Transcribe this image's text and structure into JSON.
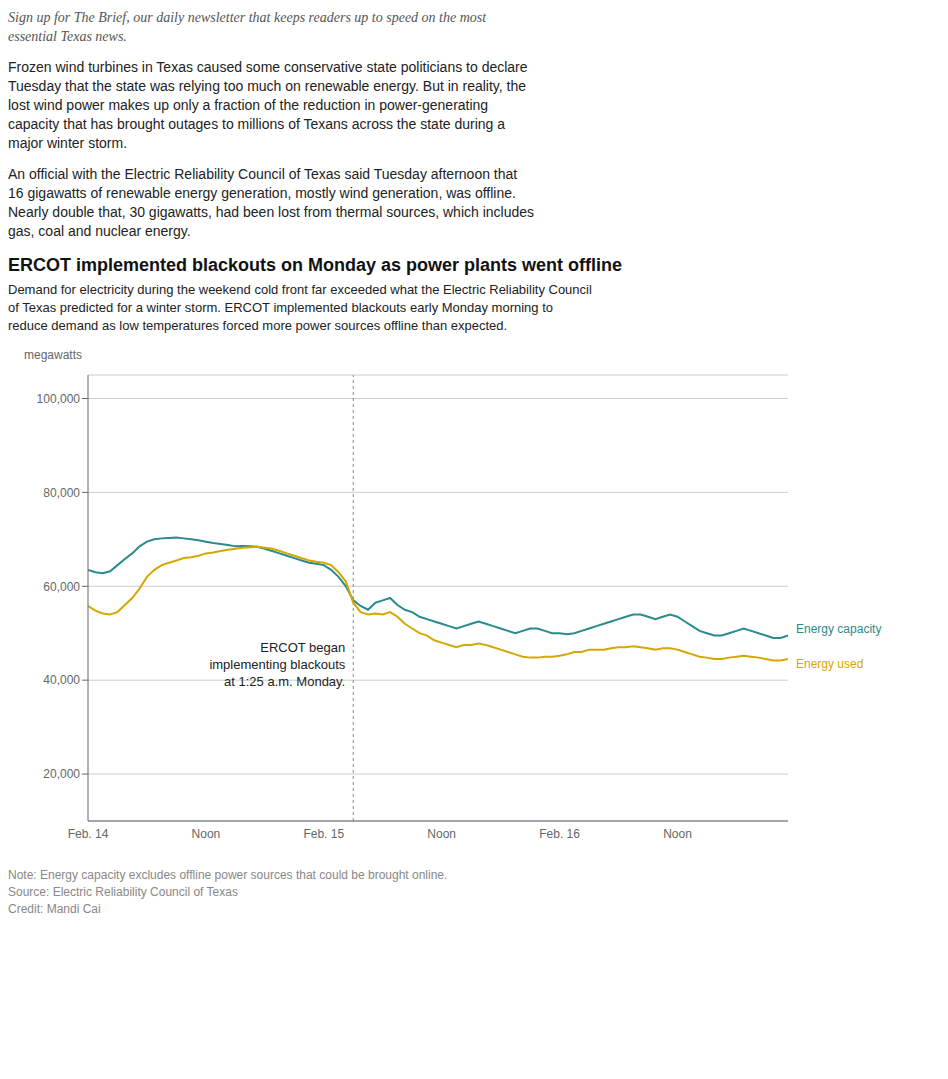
{
  "intro": [
    "Sign up for The Brief, our daily newsletter that keeps readers up to speed on the most",
    "essential Texas news."
  ],
  "paragraphs": [
    [
      "Frozen wind turbines in Texas caused some conservative state politicians to declare",
      "Tuesday that the state was relying too much on renewable energy. But in reality, the",
      "lost wind power makes up only a fraction of the reduction in power-generating",
      "capacity that has brought outages to millions of Texans across the state during a",
      "major winter storm."
    ],
    [
      "An official with the Electric Reliability Council of Texas said Tuesday afternoon that",
      "16 gigawatts of renewable energy generation, mostly wind generation, was offline.",
      "Nearly double that, 30 gigawatts, had been lost from thermal sources, which includes",
      "gas, coal and nuclear energy."
    ]
  ],
  "notes": [
    "Note: Energy capacity excludes offline power sources that could be brought online.",
    "Source: Electric Reliability Council of Texas",
    "Credit: Mandi Cai"
  ],
  "chart_data": {
    "type": "line",
    "title": "ERCOT implemented blackouts on Monday as power plants went offline",
    "subtitle": [
      "Demand for electricity during the weekend cold front far exceeded what the Electric Reliability Council",
      "of Texas predicted for a winter storm. ERCOT implemented blackouts early Monday morning to",
      "reduce demand as low temperatures forced more power sources offline than expected."
    ],
    "ylabel": "megawatts",
    "categories": [
      "Feb. 14",
      null,
      null,
      null,
      null,
      null,
      null,
      null,
      null,
      null,
      null,
      null,
      null,
      null,
      null,
      null,
      "Noon",
      null,
      null,
      null,
      null,
      null,
      null,
      null,
      null,
      null,
      null,
      null,
      null,
      null,
      null,
      null,
      "Feb. 15",
      null,
      null,
      null,
      null,
      null,
      null,
      null,
      null,
      null,
      null,
      null,
      null,
      null,
      null,
      null,
      "Noon",
      null,
      null,
      null,
      null,
      null,
      null,
      null,
      null,
      null,
      null,
      null,
      null,
      null,
      null,
      null,
      "Feb. 16",
      null,
      null,
      null,
      null,
      null,
      null,
      null,
      null,
      null,
      null,
      null,
      null,
      null,
      null,
      null,
      "Noon",
      null,
      null,
      null,
      null,
      null,
      null,
      null,
      null,
      null,
      null,
      null,
      null,
      null,
      null,
      null
    ],
    "series": [
      {
        "name": "Energy capacity",
        "color": "#2a8a8c",
        "values": [
          63500,
          63000,
          62800,
          63200,
          64500,
          65800,
          67000,
          68500,
          69500,
          70000,
          70200,
          70300,
          70400,
          70200,
          70000,
          69800,
          69500,
          69200,
          69000,
          68800,
          68500,
          68600,
          68500,
          68400,
          68000,
          67500,
          67000,
          66500,
          66000,
          65500,
          65000,
          64800,
          64500,
          63500,
          62000,
          60000,
          57000,
          55800,
          55000,
          56500,
          57000,
          57500,
          56000,
          55000,
          54500,
          53500,
          53000,
          52500,
          52000,
          51500,
          51000,
          51500,
          52000,
          52500,
          52000,
          51500,
          51000,
          50500,
          50000,
          50500,
          51000,
          51000,
          50500,
          50000,
          50000,
          49800,
          50000,
          50500,
          51000,
          51500,
          52000,
          52500,
          53000,
          53500,
          54000,
          54000,
          53500,
          53000,
          53500,
          54000,
          53500,
          52500,
          51500,
          50500,
          50000,
          49500,
          49500,
          50000,
          50500,
          51000,
          50500,
          50000,
          49500,
          49000,
          49000,
          49500
        ]
      },
      {
        "name": "Energy used",
        "color": "#d4a800",
        "values": [
          55800,
          54800,
          54200,
          54000,
          54500,
          56000,
          57500,
          59500,
          62000,
          63500,
          64500,
          65000,
          65500,
          66000,
          66200,
          66500,
          67000,
          67200,
          67500,
          67800,
          68000,
          68200,
          68300,
          68400,
          68200,
          68000,
          67500,
          67000,
          66500,
          66000,
          65500,
          65200,
          65000,
          64500,
          63000,
          61000,
          56500,
          54500,
          54000,
          54200,
          54000,
          54500,
          53500,
          52000,
          51000,
          50000,
          49500,
          48500,
          48000,
          47500,
          47000,
          47500,
          47500,
          47800,
          47500,
          47000,
          46500,
          46000,
          45500,
          45000,
          44800,
          44800,
          45000,
          45000,
          45200,
          45500,
          46000,
          46000,
          46500,
          46500,
          46500,
          46800,
          47000,
          47000,
          47200,
          47000,
          46800,
          46500,
          46800,
          46800,
          46500,
          46000,
          45500,
          45000,
          44800,
          44500,
          44500,
          44800,
          45000,
          45200,
          45000,
          44800,
          44500,
          44200,
          44200,
          44500
        ]
      }
    ],
    "ylim": [
      10000,
      105000
    ],
    "yticks": [
      {
        "value": 20000,
        "label": "20,000"
      },
      {
        "value": 40000,
        "label": "40,000"
      },
      {
        "value": 60000,
        "label": "60,000"
      },
      {
        "value": 80000,
        "label": "80,000"
      },
      {
        "value": 100000,
        "label": "100,000"
      }
    ],
    "grid": true,
    "annotations": [
      {
        "text": "ERCOT began\nimplementing blackouts\nat 1:25 a.m. Monday.",
        "x": 36
      }
    ]
  }
}
